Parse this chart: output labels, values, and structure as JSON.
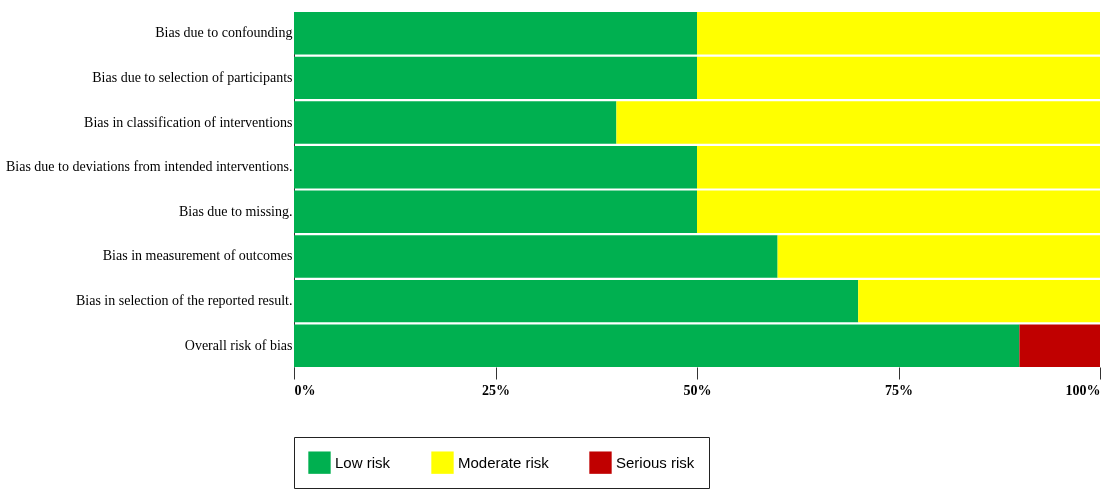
{
  "chart_data": {
    "type": "bar",
    "orientation": "horizontal",
    "stacked": true,
    "categories": [
      "Bias due to confounding",
      "Bias due to selection of participants",
      "Bias in classification of interventions",
      "Bias due to deviations from intended interventions.",
      "Bias due to missing.",
      "Bias in measurement of outcomes",
      "Bias in selection of the reported result.",
      "Overall risk of bias"
    ],
    "series": [
      {
        "name": "Low risk",
        "color": "#00b050",
        "values": [
          50,
          50,
          40,
          50,
          50,
          60,
          70,
          90
        ]
      },
      {
        "name": "Moderate risk",
        "color": "#ffff00",
        "values": [
          50,
          50,
          60,
          50,
          50,
          40,
          30,
          null
        ]
      },
      {
        "name": "Serious risk",
        "color": "#c00000",
        "values": [
          null,
          null,
          null,
          null,
          null,
          null,
          null,
          10
        ]
      }
    ],
    "xlim": [
      0,
      100
    ],
    "xticks": [
      {
        "value": 0,
        "label": "0%"
      },
      {
        "value": 25,
        "label": "25%"
      },
      {
        "value": 50,
        "label": "50%"
      },
      {
        "value": 75,
        "label": "75%"
      },
      {
        "value": 100,
        "label": "100%"
      }
    ],
    "grid": false,
    "legend": "bottom"
  }
}
